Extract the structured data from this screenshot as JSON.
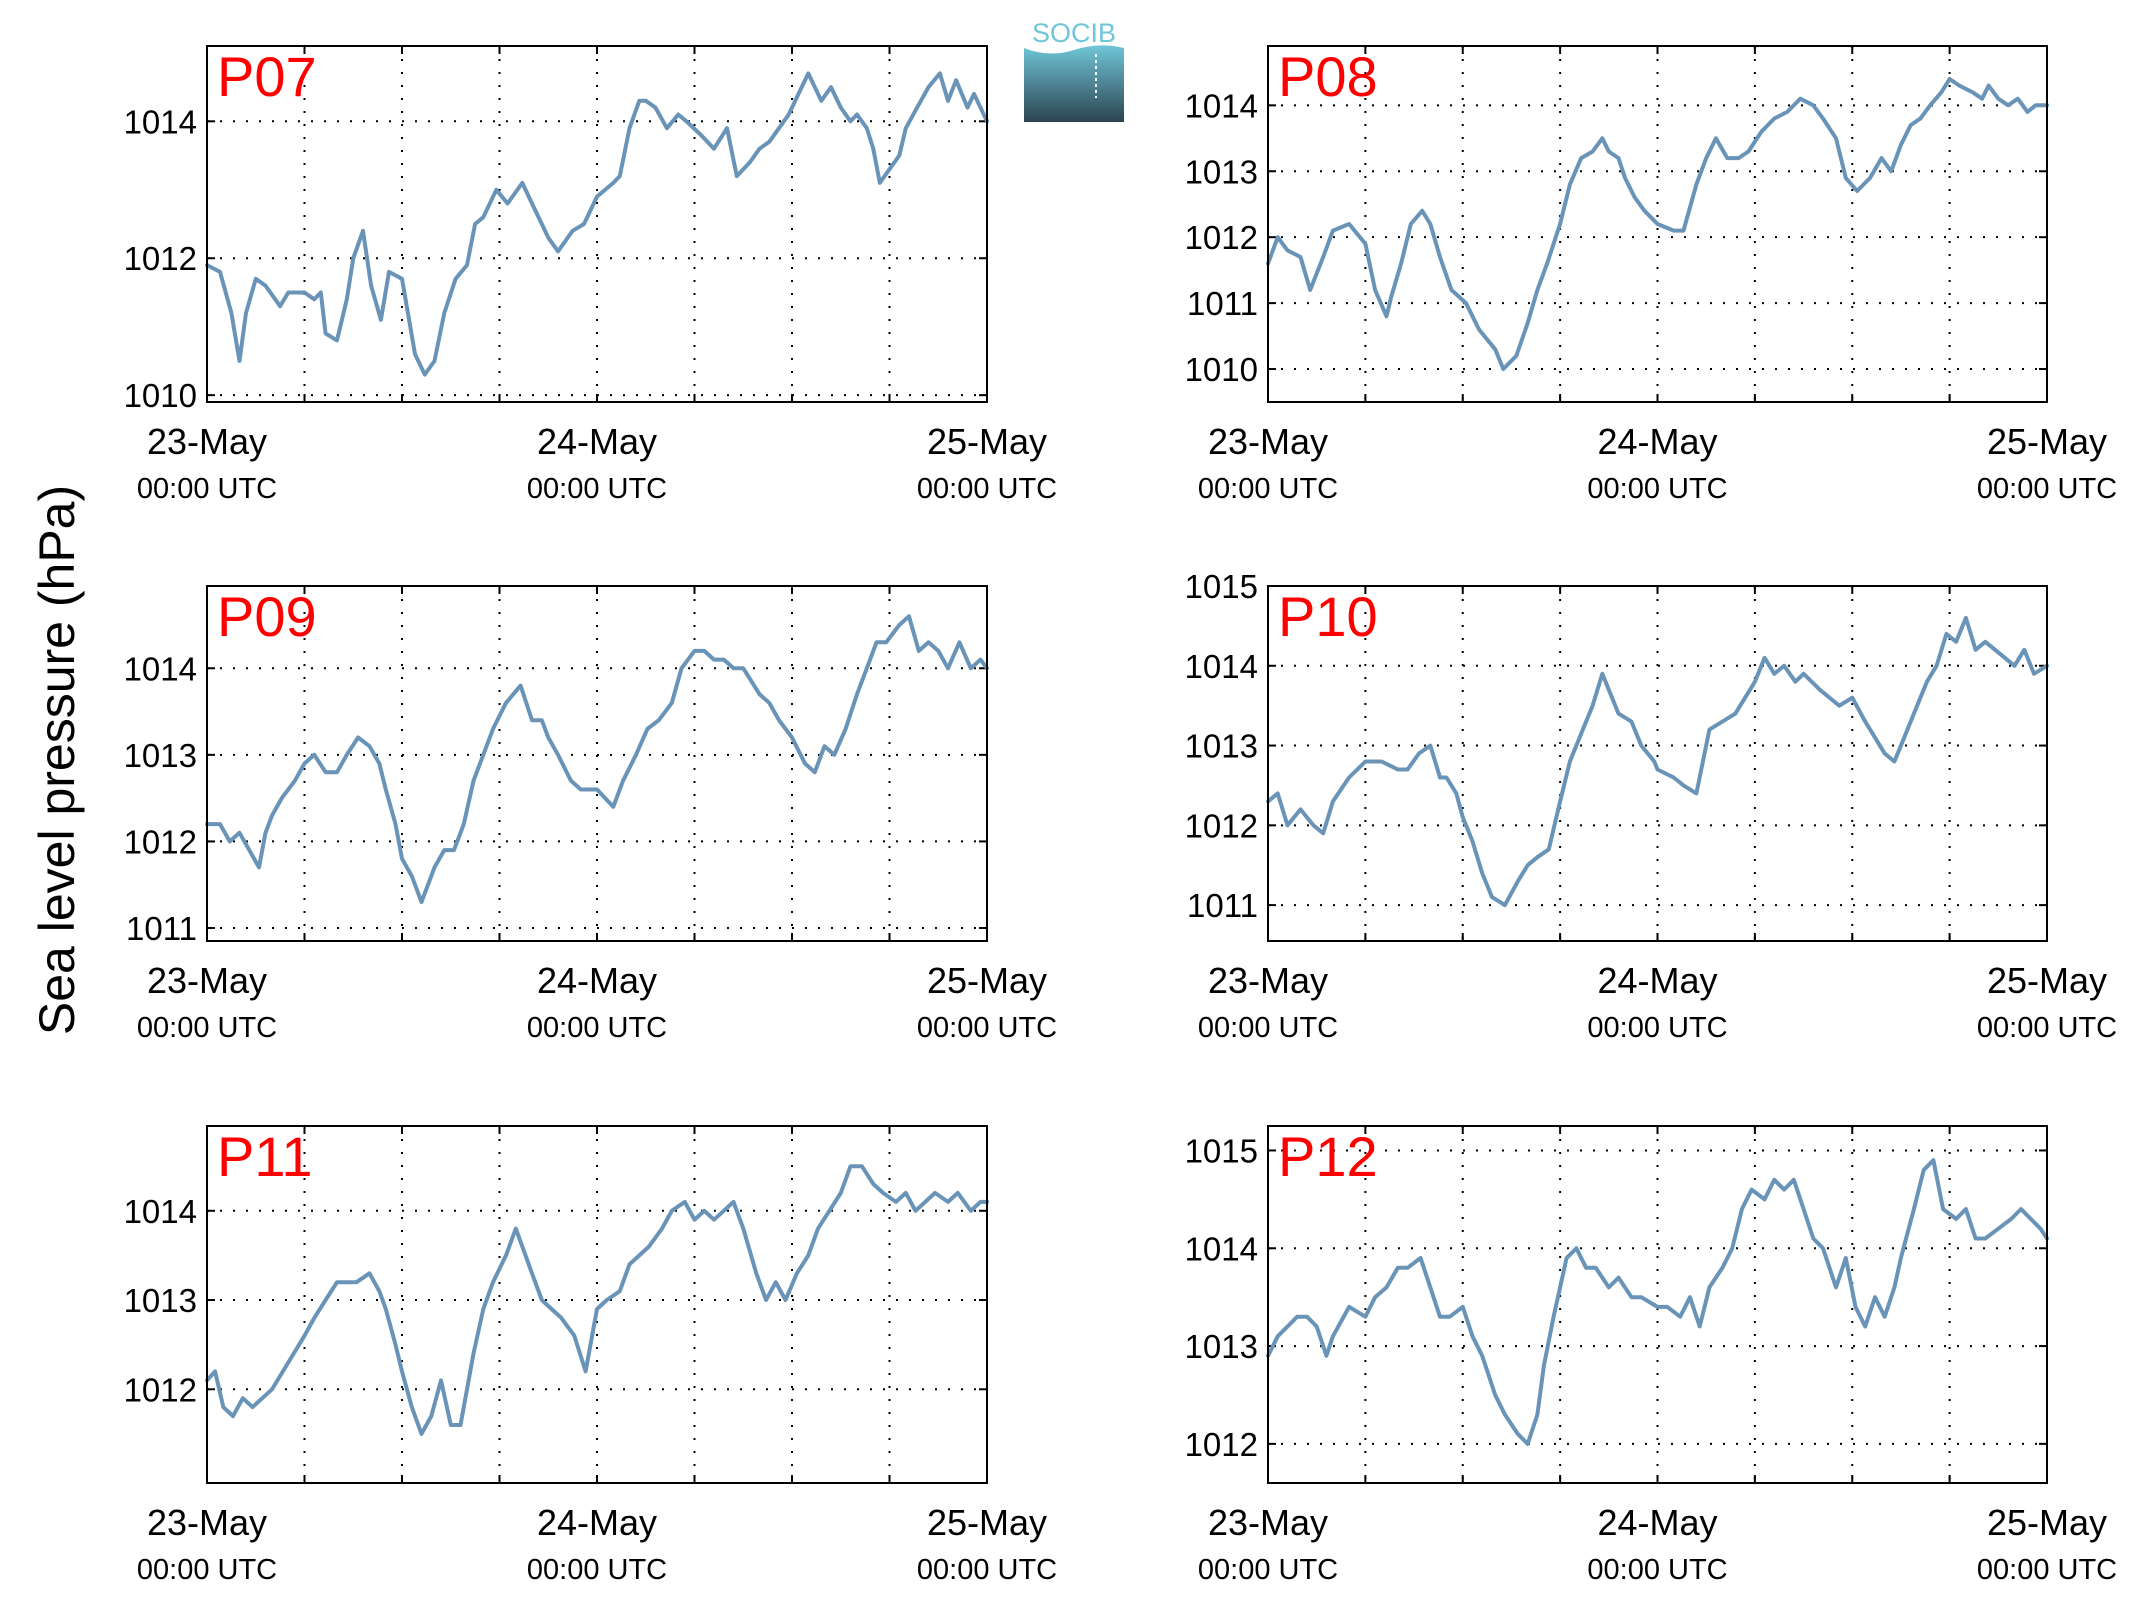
{
  "figure": {
    "ylabel": "Sea level pressure (hPa)",
    "logo_text": "SOCIB",
    "colors": {
      "line": "#6994b7",
      "panel_label": "#ff0000",
      "grid": "#000000",
      "logo_top": "#6fc6d8",
      "logo_bottom": "#2c4350"
    }
  },
  "chart_data": [
    {
      "type": "line",
      "name": "P07",
      "x_tick_dates": [
        "23-May",
        "24-May",
        "25-May"
      ],
      "x_tick_times": [
        "00:00 UTC",
        "00:00 UTC",
        "00:00 UTC"
      ],
      "xlim_hours": [
        0,
        48
      ],
      "ylim": [
        1009.9,
        1015.1
      ],
      "yticks": [
        1010,
        1012,
        1014
      ],
      "series_hours": [
        0,
        0.8,
        1.5,
        2,
        2.4,
        3,
        3.6,
        4.5,
        5,
        6,
        6.6,
        7,
        7.3,
        8,
        8.6,
        9,
        9.6,
        10.1,
        10.7,
        11.2,
        12,
        12.8,
        13.4,
        14,
        14.6,
        15.3,
        16,
        16.5,
        17,
        17.8,
        18.5,
        19.4,
        20,
        20.6,
        21,
        21.6,
        22.5,
        23.2,
        24,
        25,
        25.4,
        26,
        26.6,
        27,
        27.6,
        28.3,
        29,
        29.5,
        30.4,
        31.2,
        32,
        32.6,
        33.4,
        34,
        34.6,
        35.2,
        35.8,
        36.4,
        37,
        37.8,
        38.4,
        39,
        39.6,
        40,
        40.6,
        41,
        41.4,
        42,
        42.6,
        43,
        43.7,
        44.4,
        45.1,
        45.6,
        46.1,
        46.8,
        47.2,
        48
      ],
      "series_values": [
        1011.9,
        1011.8,
        1011.2,
        1010.5,
        1011.2,
        1011.7,
        1011.6,
        1011.3,
        1011.5,
        1011.5,
        1011.4,
        1011.5,
        1010.9,
        1010.8,
        1011.4,
        1012,
        1012.4,
        1011.6,
        1011.1,
        1011.8,
        1011.7,
        1010.6,
        1010.3,
        1010.5,
        1011.2,
        1011.7,
        1011.9,
        1012.5,
        1012.6,
        1013,
        1012.8,
        1013.1,
        1012.8,
        1012.5,
        1012.3,
        1012.1,
        1012.4,
        1012.5,
        1012.9,
        1013.1,
        1013.2,
        1013.9,
        1014.3,
        1014.3,
        1014.2,
        1013.9,
        1014.1,
        1014,
        1013.8,
        1013.6,
        1013.9,
        1013.2,
        1013.4,
        1013.6,
        1013.7,
        1013.9,
        1014.1,
        1014.4,
        1014.7,
        1014.3,
        1014.5,
        1014.2,
        1014,
        1014.1,
        1013.9,
        1013.6,
        1013.1,
        1013.3,
        1013.5,
        1013.9,
        1014.2,
        1014.5,
        1014.7,
        1014.3,
        1014.6,
        1014.2,
        1014.4,
        1014.0
      ]
    },
    {
      "type": "line",
      "name": "P08",
      "x_tick_dates": [
        "23-May",
        "24-May",
        "25-May"
      ],
      "x_tick_times": [
        "00:00 UTC",
        "00:00 UTC",
        "00:00 UTC"
      ],
      "xlim_hours": [
        0,
        48
      ],
      "ylim": [
        1009.5,
        1014.9
      ],
      "yticks": [
        1010,
        1011,
        1012,
        1013,
        1014
      ],
      "series_hours": [
        0,
        0.6,
        1.2,
        2,
        2.6,
        3.4,
        4,
        5,
        6,
        6.6,
        7.3,
        7.6,
        8.2,
        8.8,
        9.5,
        10,
        10.6,
        11.3,
        12.2,
        13,
        14,
        14.5,
        15.3,
        16,
        16.6,
        17.2,
        18,
        18.6,
        19.3,
        20,
        20.6,
        21,
        21.6,
        22,
        22.6,
        23.2,
        24,
        25,
        25.6,
        26.4,
        27,
        27.6,
        28.3,
        29,
        29.6,
        30.4,
        31.2,
        32,
        32.8,
        33.6,
        34.2,
        35,
        35.6,
        36.3,
        37.1,
        37.8,
        38.4,
        39,
        39.6,
        40.2,
        40.8,
        41.5,
        42,
        42.6,
        43.4,
        44,
        44.4,
        45,
        45.6,
        46.2,
        46.8,
        47.3,
        48
      ],
      "series_values": [
        1011.6,
        1012,
        1011.8,
        1011.7,
        1011.2,
        1011.7,
        1012.1,
        1012.2,
        1011.9,
        1011.2,
        1010.8,
        1011.1,
        1011.6,
        1012.2,
        1012.4,
        1012.2,
        1011.7,
        1011.2,
        1011,
        1010.6,
        1010.3,
        1010,
        1010.2,
        1010.7,
        1011.2,
        1011.6,
        1012.2,
        1012.8,
        1013.2,
        1013.3,
        1013.5,
        1013.3,
        1013.2,
        1012.9,
        1012.6,
        1012.4,
        1012.2,
        1012.1,
        1012.1,
        1012.8,
        1013.2,
        1013.5,
        1013.2,
        1013.2,
        1013.3,
        1013.6,
        1013.8,
        1013.9,
        1014.1,
        1014,
        1013.8,
        1013.5,
        1012.9,
        1012.7,
        1012.9,
        1013.2,
        1013,
        1013.4,
        1013.7,
        1013.8,
        1014,
        1014.2,
        1014.4,
        1014.3,
        1014.2,
        1014.1,
        1014.3,
        1014.1,
        1014.0,
        1014.1,
        1013.9,
        1014.0,
        1014.0
      ]
    },
    {
      "type": "line",
      "name": "P09",
      "x_tick_dates": [
        "23-May",
        "24-May",
        "25-May"
      ],
      "x_tick_times": [
        "00:00 UTC",
        "00:00 UTC",
        "00:00 UTC"
      ],
      "xlim_hours": [
        0,
        48
      ],
      "ylim": [
        1010.85,
        1014.95
      ],
      "yticks": [
        1011,
        1012,
        1013,
        1014
      ],
      "series_hours": [
        0,
        0.8,
        1.4,
        2,
        2.6,
        3.2,
        3.6,
        4,
        4.6,
        5.4,
        6,
        6.6,
        7.3,
        8,
        8.6,
        9.3,
        10,
        10.6,
        11,
        11.6,
        12,
        12.6,
        13.2,
        14,
        14.6,
        15.2,
        15.8,
        16.4,
        17,
        17.6,
        18.4,
        19.3,
        20,
        20.6,
        21,
        21.6,
        22.4,
        23,
        24,
        25,
        25.6,
        26.4,
        27.1,
        27.8,
        28.6,
        29.2,
        30,
        30.6,
        31.2,
        31.8,
        32.4,
        33,
        34,
        34.6,
        35.2,
        36,
        36.8,
        37.4,
        38,
        38.6,
        39.3,
        40,
        40.6,
        41.2,
        41.8,
        42.6,
        43.2,
        43.8,
        44.4,
        45,
        45.6,
        46.3,
        47,
        47.6,
        48
      ],
      "series_values": [
        1012.2,
        1012.2,
        1012,
        1012.1,
        1011.9,
        1011.7,
        1012.1,
        1012.3,
        1012.5,
        1012.7,
        1012.9,
        1013,
        1012.8,
        1012.8,
        1013,
        1013.2,
        1013.1,
        1012.9,
        1012.6,
        1012.2,
        1011.8,
        1011.6,
        1011.3,
        1011.7,
        1011.9,
        1011.9,
        1012.2,
        1012.7,
        1013.0,
        1013.3,
        1013.6,
        1013.8,
        1013.4,
        1013.4,
        1013.2,
        1013,
        1012.7,
        1012.6,
        1012.6,
        1012.4,
        1012.7,
        1013,
        1013.3,
        1013.4,
        1013.6,
        1014,
        1014.2,
        1014.2,
        1014.1,
        1014.1,
        1014,
        1014,
        1013.7,
        1013.6,
        1013.4,
        1013.2,
        1012.9,
        1012.8,
        1013.1,
        1013,
        1013.3,
        1013.7,
        1014.0,
        1014.3,
        1014.3,
        1014.5,
        1014.6,
        1014.2,
        1014.3,
        1014.2,
        1014.0,
        1014.3,
        1014.0,
        1014.1,
        1014.0
      ]
    },
    {
      "type": "line",
      "name": "P10",
      "x_tick_dates": [
        "23-May",
        "24-May",
        "25-May"
      ],
      "x_tick_times": [
        "00:00 UTC",
        "00:00 UTC",
        "00:00 UTC"
      ],
      "xlim_hours": [
        0,
        48
      ],
      "ylim": [
        1010.55,
        1015.0
      ],
      "yticks": [
        1011,
        1012,
        1013,
        1014,
        1015
      ],
      "series_hours": [
        0,
        0.6,
        1.2,
        2,
        2.8,
        3.4,
        4,
        5,
        6,
        7,
        8,
        8.6,
        9.3,
        10,
        10.6,
        11,
        11.6,
        12,
        12.6,
        13.2,
        13.8,
        14.6,
        15.4,
        16,
        16.6,
        17.3,
        18,
        18.6,
        19.4,
        20,
        20.6,
        21,
        21.6,
        22.4,
        23,
        23.8,
        24,
        25,
        25.6,
        26.4,
        27.2,
        28,
        28.8,
        29.4,
        30,
        30.6,
        31.2,
        31.8,
        32.5,
        33,
        34,
        34.6,
        35.2,
        36,
        36.8,
        37.4,
        38,
        38.6,
        39.2,
        39.8,
        40.6,
        41.2,
        41.8,
        42.4,
        43,
        43.6,
        44.2,
        44.8,
        45.4,
        46,
        46.6,
        47.2,
        48
      ],
      "series_values": [
        1012.3,
        1012.4,
        1012.0,
        1012.2,
        1012.0,
        1011.9,
        1012.3,
        1012.6,
        1012.8,
        1012.8,
        1012.7,
        1012.7,
        1012.9,
        1013,
        1012.6,
        1012.6,
        1012.4,
        1012.1,
        1011.8,
        1011.4,
        1011.1,
        1011.0,
        1011.3,
        1011.5,
        1011.6,
        1011.7,
        1012.3,
        1012.8,
        1013.2,
        1013.5,
        1013.9,
        1013.7,
        1013.4,
        1013.3,
        1013,
        1012.8,
        1012.7,
        1012.6,
        1012.5,
        1012.4,
        1013.2,
        1013.3,
        1013.4,
        1013.6,
        1013.8,
        1014.1,
        1013.9,
        1014,
        1013.8,
        1013.9,
        1013.7,
        1013.6,
        1013.5,
        1013.6,
        1013.3,
        1013.1,
        1012.9,
        1012.8,
        1013.1,
        1013.4,
        1013.8,
        1014.0,
        1014.4,
        1014.3,
        1014.6,
        1014.2,
        1014.3,
        1014.2,
        1014.1,
        1014.0,
        1014.2,
        1013.9,
        1014.0
      ]
    },
    {
      "type": "line",
      "name": "P11",
      "x_tick_dates": [
        "23-May",
        "24-May",
        "25-May"
      ],
      "x_tick_times": [
        "00:00 UTC",
        "00:00 UTC",
        "00:00 UTC"
      ],
      "xlim_hours": [
        0,
        48
      ],
      "ylim": [
        1010.95,
        1014.95
      ],
      "yticks": [
        1012,
        1013,
        1014
      ],
      "series_hours": [
        0,
        0.5,
        1,
        1.6,
        2.2,
        2.8,
        3.4,
        4,
        5,
        6,
        6.6,
        7.3,
        8,
        8.6,
        9.2,
        10,
        10.6,
        11,
        11.6,
        12,
        12.6,
        13.2,
        13.8,
        14.4,
        15,
        15.6,
        16.4,
        17,
        17.6,
        18.4,
        19,
        20,
        20.6,
        21.2,
        21.8,
        22.6,
        23.3,
        24,
        24.6,
        25.4,
        26,
        26.6,
        27.2,
        28,
        28.6,
        29.4,
        30,
        30.6,
        31.2,
        31.8,
        32.4,
        33,
        33.8,
        34.4,
        35,
        35.6,
        36.3,
        37,
        37.6,
        38.3,
        39,
        39.6,
        40.3,
        41,
        41.6,
        42.4,
        43,
        43.6,
        44.2,
        44.8,
        45.6,
        46.2,
        47,
        47.6,
        48
      ],
      "series_values": [
        1012.1,
        1012.2,
        1011.8,
        1011.7,
        1011.9,
        1011.8,
        1011.9,
        1012.0,
        1012.3,
        1012.6,
        1012.8,
        1013.0,
        1013.2,
        1013.2,
        1013.2,
        1013.3,
        1013.1,
        1012.9,
        1012.5,
        1012.2,
        1011.8,
        1011.5,
        1011.7,
        1012.1,
        1011.6,
        1011.6,
        1012.4,
        1012.9,
        1013.2,
        1013.5,
        1013.8,
        1013.3,
        1013.0,
        1012.9,
        1012.8,
        1012.6,
        1012.2,
        1012.9,
        1013.0,
        1013.1,
        1013.4,
        1013.5,
        1013.6,
        1013.8,
        1014.0,
        1014.1,
        1013.9,
        1014.0,
        1013.9,
        1014.0,
        1014.1,
        1013.8,
        1013.3,
        1013.0,
        1013.2,
        1013.0,
        1013.3,
        1013.5,
        1013.8,
        1014.0,
        1014.2,
        1014.5,
        1014.5,
        1014.3,
        1014.2,
        1014.1,
        1014.2,
        1014.0,
        1014.1,
        1014.2,
        1014.1,
        1014.2,
        1014.0,
        1014.1,
        1014.1
      ]
    },
    {
      "type": "line",
      "name": "P12",
      "x_tick_dates": [
        "23-May",
        "24-May",
        "25-May"
      ],
      "x_tick_times": [
        "00:00 UTC",
        "00:00 UTC",
        "00:00 UTC"
      ],
      "xlim_hours": [
        0,
        48
      ],
      "ylim": [
        1011.6,
        1015.25
      ],
      "yticks": [
        1012,
        1013,
        1014,
        1015
      ],
      "series_hours": [
        0,
        0.6,
        1.2,
        1.8,
        2.4,
        3,
        3.6,
        4,
        5,
        6,
        6.6,
        7.3,
        8,
        8.6,
        9.4,
        10,
        10.6,
        11.2,
        12,
        12.6,
        13.2,
        14,
        14.6,
        15.4,
        16,
        16.6,
        17,
        17.6,
        18.4,
        19,
        19.6,
        20.2,
        21,
        21.6,
        22.4,
        23,
        24,
        24.6,
        25.4,
        26,
        26.6,
        27.2,
        28,
        28.6,
        29.2,
        29.8,
        30.6,
        31.2,
        31.8,
        32.4,
        33,
        33.6,
        34.2,
        35,
        35.6,
        36.2,
        36.8,
        37.4,
        38,
        38.6,
        39,
        39.8,
        40.4,
        41,
        41.6,
        42.4,
        43,
        43.6,
        44.2,
        45,
        45.8,
        46.4,
        47,
        47.6,
        48
      ],
      "series_values": [
        1012.9,
        1013.1,
        1013.2,
        1013.3,
        1013.3,
        1013.2,
        1012.9,
        1013.1,
        1013.4,
        1013.3,
        1013.5,
        1013.6,
        1013.8,
        1013.8,
        1013.9,
        1013.6,
        1013.3,
        1013.3,
        1013.4,
        1013.1,
        1012.9,
        1012.5,
        1012.3,
        1012.1,
        1012.0,
        1012.3,
        1012.8,
        1013.3,
        1013.9,
        1014.0,
        1013.8,
        1013.8,
        1013.6,
        1013.7,
        1013.5,
        1013.5,
        1013.4,
        1013.4,
        1013.3,
        1013.5,
        1013.2,
        1013.6,
        1013.8,
        1014.0,
        1014.4,
        1014.6,
        1014.5,
        1014.7,
        1014.6,
        1014.7,
        1014.4,
        1014.1,
        1014.0,
        1013.6,
        1013.9,
        1013.4,
        1013.2,
        1013.5,
        1013.3,
        1013.6,
        1013.9,
        1014.4,
        1014.8,
        1014.9,
        1014.4,
        1014.3,
        1014.4,
        1014.1,
        1014.1,
        1014.2,
        1014.3,
        1014.4,
        1014.3,
        1014.2,
        1014.1
      ]
    }
  ]
}
